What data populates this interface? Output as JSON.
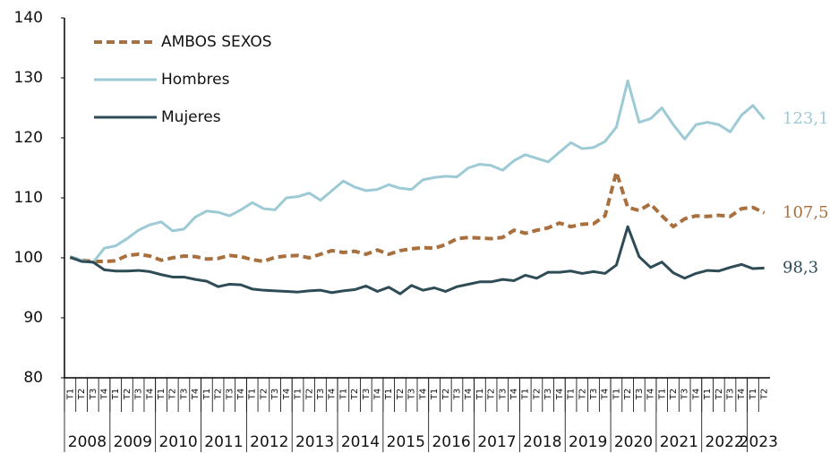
{
  "chart_data": {
    "type": "line",
    "categories": [
      "T1",
      "T2",
      "T3",
      "T4",
      "T1",
      "T2",
      "T3",
      "T4",
      "T1",
      "T2",
      "T3",
      "T4",
      "T1",
      "T2",
      "T3",
      "T4",
      "T1",
      "T2",
      "T3",
      "T4",
      "T1",
      "T2",
      "T3",
      "T4",
      "T1",
      "T2",
      "T3",
      "T4",
      "T1",
      "T2",
      "T3",
      "T4",
      "T1",
      "T2",
      "T3",
      "T4",
      "T1",
      "T2",
      "T3",
      "T4",
      "T1",
      "T2",
      "T3",
      "T4",
      "T1",
      "T2",
      "T3",
      "T4",
      "T1",
      "T2",
      "T3",
      "T4",
      "T1",
      "T2",
      "T3",
      "T4",
      "T1",
      "T2",
      "T3",
      "T4",
      "T1",
      "T2"
    ],
    "years": [
      "2008",
      "2009",
      "2010",
      "2011",
      "2012",
      "2013",
      "2014",
      "2015",
      "2016",
      "2017",
      "2018",
      "2019",
      "2020",
      "2021",
      "2022",
      "2023"
    ],
    "ylim": [
      80,
      140
    ],
    "yticks": [
      80,
      90,
      100,
      110,
      120,
      130,
      140
    ],
    "grid": false,
    "legend": "top-left",
    "series": [
      {
        "name": "AMBOS SEXOS",
        "color": "#a8703e",
        "dash": true,
        "end_label": "107,5",
        "values": [
          100.1,
          99.6,
          99.4,
          99.4,
          99.5,
          100.4,
          100.6,
          100.3,
          99.6,
          100.0,
          100.3,
          100.2,
          99.8,
          99.9,
          100.4,
          100.2,
          99.7,
          99.4,
          100.1,
          100.3,
          100.4,
          100.0,
          100.6,
          101.2,
          100.9,
          101.1,
          100.6,
          101.3,
          100.6,
          101.2,
          101.5,
          101.7,
          101.6,
          102.2,
          103.2,
          103.4,
          103.3,
          103.2,
          103.4,
          104.6,
          104.1,
          104.6,
          105.0,
          105.8,
          105.2,
          105.6,
          105.7,
          107.0,
          114.3,
          108.4,
          107.9,
          109.0,
          107.0,
          105.2,
          106.5,
          107.0,
          106.9,
          107.1,
          106.9,
          108.2,
          108.4,
          107.5
        ]
      },
      {
        "name": "Hombres",
        "color": "#9ccad5",
        "dash": false,
        "end_label": "123,1",
        "values": [
          100.2,
          99.6,
          99.2,
          101.6,
          102.0,
          103.2,
          104.6,
          105.5,
          106.0,
          104.5,
          104.8,
          106.8,
          107.8,
          107.6,
          107.0,
          108.0,
          109.2,
          108.2,
          108.0,
          110.0,
          110.2,
          110.8,
          109.6,
          111.2,
          112.8,
          111.8,
          111.2,
          111.4,
          112.2,
          111.6,
          111.4,
          113.0,
          113.4,
          113.6,
          113.5,
          115.0,
          115.6,
          115.4,
          114.6,
          116.2,
          117.2,
          116.6,
          116.0,
          117.6,
          119.2,
          118.2,
          118.4,
          119.4,
          121.8,
          129.5,
          122.6,
          123.2,
          125.0,
          122.2,
          119.8,
          122.2,
          122.6,
          122.2,
          121.0,
          123.8,
          125.4,
          123.1
        ]
      },
      {
        "name": "Mujeres",
        "color": "#2e4c55",
        "dash": false,
        "end_label": "98,3",
        "values": [
          100.1,
          99.4,
          99.3,
          98.0,
          97.8,
          97.8,
          97.9,
          97.7,
          97.2,
          96.8,
          96.8,
          96.4,
          96.1,
          95.2,
          95.6,
          95.5,
          94.8,
          94.6,
          94.5,
          94.4,
          94.3,
          94.5,
          94.6,
          94.2,
          94.5,
          94.7,
          95.3,
          94.4,
          95.1,
          94.0,
          95.4,
          94.6,
          95.0,
          94.4,
          95.2,
          95.6,
          96.0,
          96.0,
          96.4,
          96.2,
          97.1,
          96.6,
          97.6,
          97.6,
          97.8,
          97.4,
          97.7,
          97.4,
          98.8,
          105.2,
          100.2,
          98.4,
          99.3,
          97.5,
          96.6,
          97.4,
          97.9,
          97.8,
          98.4,
          98.9,
          98.2,
          98.3
        ]
      }
    ]
  }
}
